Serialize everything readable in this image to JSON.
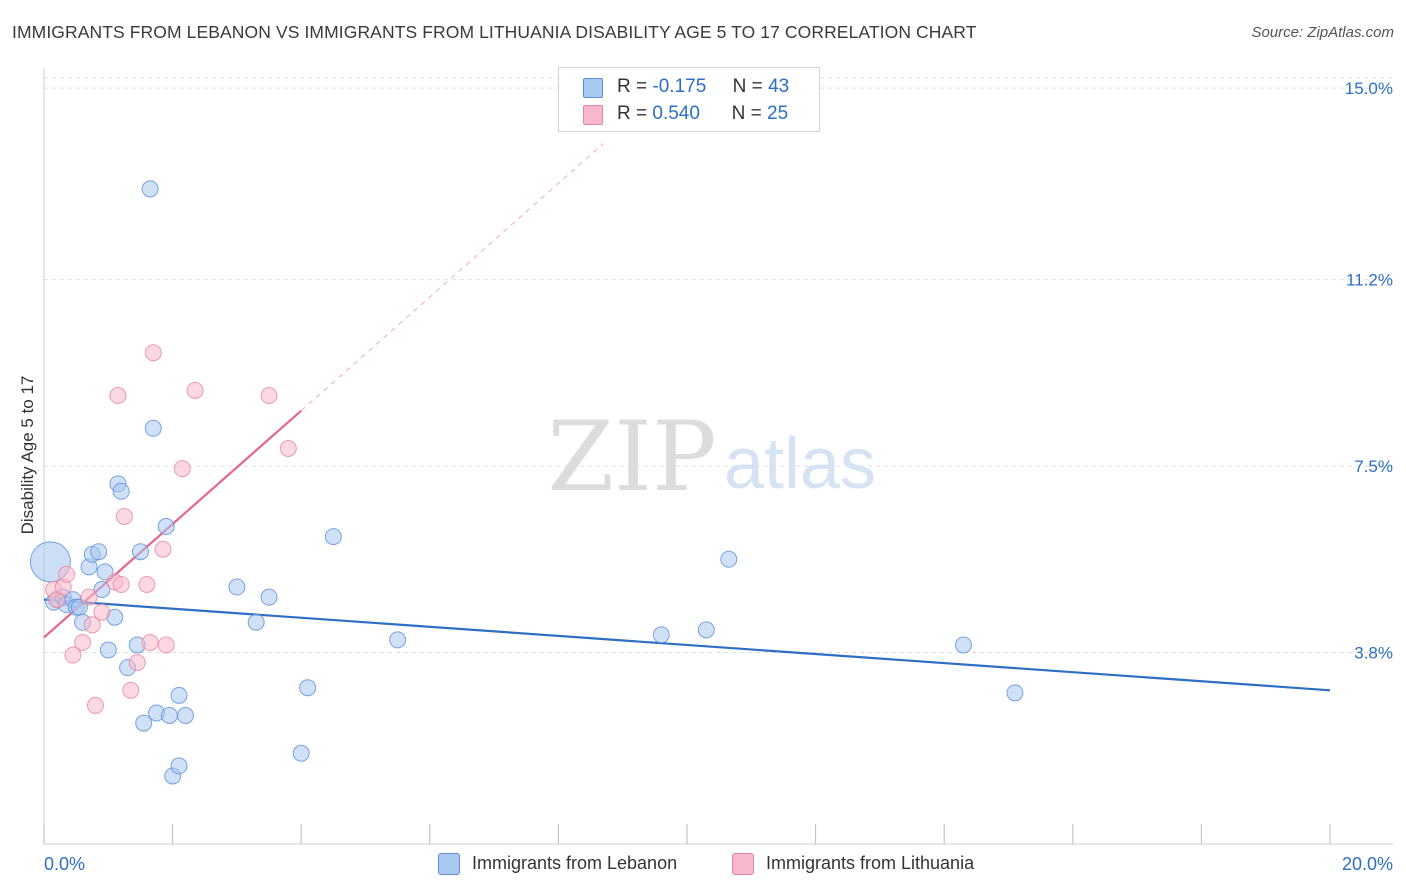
{
  "title": "IMMIGRANTS FROM LEBANON VS IMMIGRANTS FROM LITHUANIA DISABILITY AGE 5 TO 17 CORRELATION CHART",
  "source": "Source: ZipAtlas.com",
  "watermark": {
    "zip": "ZIP",
    "atlas": "atlas"
  },
  "legend_top": [
    {
      "r_label": "R =",
      "r_value": "-0.175",
      "n_label": "N =",
      "n_value": "43",
      "color": "#a9c8f0"
    },
    {
      "r_label": "R =",
      "r_value": "0.540",
      "n_label": "N =",
      "n_value": "25",
      "color": "#f7b8cb"
    }
  ],
  "chart_data": {
    "type": "scatter",
    "title": "IMMIGRANTS FROM LEBANON VS IMMIGRANTS FROM LITHUANIA DISABILITY AGE 5 TO 17 CORRELATION CHART",
    "xlabel": "",
    "ylabel": "Disability Age 5 to 17",
    "xlim": [
      0,
      20
    ],
    "ylim": [
      0,
      15.4
    ],
    "x_tick_labels": [
      "0.0%",
      "20.0%"
    ],
    "y_ticks": [
      3.8,
      7.5,
      11.2,
      15.0
    ],
    "y_tick_labels": [
      "3.8%",
      "7.5%",
      "11.2%",
      "15.0%"
    ],
    "grid": true,
    "legend_position": "bottom",
    "series": [
      {
        "name": "Immigrants from Lebanon",
        "color": "#a9c8f0",
        "stroke": "#5b8fd6",
        "trend": {
          "x": [
            0.0,
            20.0
          ],
          "y": [
            4.85,
            3.05
          ]
        },
        "points": [
          {
            "x": 0.1,
            "y": 5.6,
            "big": true
          },
          {
            "x": 0.15,
            "y": 4.8
          },
          {
            "x": 0.2,
            "y": 4.85
          },
          {
            "x": 0.3,
            "y": 4.9
          },
          {
            "x": 0.35,
            "y": 4.75
          },
          {
            "x": 0.45,
            "y": 4.85
          },
          {
            "x": 0.5,
            "y": 4.7
          },
          {
            "x": 0.6,
            "y": 4.4
          },
          {
            "x": 0.7,
            "y": 5.5
          },
          {
            "x": 0.75,
            "y": 5.75
          },
          {
            "x": 0.85,
            "y": 5.8
          },
          {
            "x": 0.9,
            "y": 5.05
          },
          {
            "x": 0.95,
            "y": 5.4
          },
          {
            "x": 1.0,
            "y": 3.85
          },
          {
            "x": 1.1,
            "y": 4.5
          },
          {
            "x": 1.15,
            "y": 7.15
          },
          {
            "x": 1.2,
            "y": 7.0
          },
          {
            "x": 1.3,
            "y": 3.5
          },
          {
            "x": 1.45,
            "y": 3.95
          },
          {
            "x": 1.5,
            "y": 5.8
          },
          {
            "x": 1.55,
            "y": 2.4
          },
          {
            "x": 1.65,
            "y": 13.0
          },
          {
            "x": 1.7,
            "y": 8.25
          },
          {
            "x": 1.75,
            "y": 2.6
          },
          {
            "x": 1.9,
            "y": 6.3
          },
          {
            "x": 1.95,
            "y": 2.55
          },
          {
            "x": 2.0,
            "y": 1.35
          },
          {
            "x": 2.1,
            "y": 1.55
          },
          {
            "x": 2.1,
            "y": 2.95
          },
          {
            "x": 2.2,
            "y": 2.55
          },
          {
            "x": 3.0,
            "y": 5.1
          },
          {
            "x": 3.3,
            "y": 4.4
          },
          {
            "x": 3.5,
            "y": 4.9
          },
          {
            "x": 4.0,
            "y": 1.8
          },
          {
            "x": 4.1,
            "y": 3.1
          },
          {
            "x": 4.5,
            "y": 6.1
          },
          {
            "x": 5.5,
            "y": 4.05
          },
          {
            "x": 9.6,
            "y": 4.15
          },
          {
            "x": 10.3,
            "y": 4.25
          },
          {
            "x": 10.65,
            "y": 5.65
          },
          {
            "x": 14.3,
            "y": 3.95
          },
          {
            "x": 15.1,
            "y": 3.0
          },
          {
            "x": 0.55,
            "y": 4.7
          }
        ]
      },
      {
        "name": "Immigrants from Lithuania",
        "color": "#f7b8cb",
        "stroke": "#e8869f",
        "trend": {
          "x": [
            0.0,
            4.0
          ],
          "y": [
            4.1,
            8.6
          ]
        },
        "trend_dashed": {
          "x": [
            4.0,
            8.7
          ],
          "y": [
            8.6,
            13.9
          ]
        },
        "points": [
          {
            "x": 0.15,
            "y": 5.05
          },
          {
            "x": 0.2,
            "y": 4.85
          },
          {
            "x": 0.3,
            "y": 5.1
          },
          {
            "x": 0.35,
            "y": 5.35
          },
          {
            "x": 0.45,
            "y": 3.75
          },
          {
            "x": 0.6,
            "y": 4.0
          },
          {
            "x": 0.7,
            "y": 4.9
          },
          {
            "x": 0.75,
            "y": 4.35
          },
          {
            "x": 0.8,
            "y": 2.75
          },
          {
            "x": 0.9,
            "y": 4.6
          },
          {
            "x": 1.1,
            "y": 5.2
          },
          {
            "x": 1.15,
            "y": 8.9
          },
          {
            "x": 1.25,
            "y": 6.5
          },
          {
            "x": 1.35,
            "y": 3.05
          },
          {
            "x": 1.45,
            "y": 3.6
          },
          {
            "x": 1.6,
            "y": 5.15
          },
          {
            "x": 1.65,
            "y": 4.0
          },
          {
            "x": 1.7,
            "y": 9.75
          },
          {
            "x": 1.85,
            "y": 5.85
          },
          {
            "x": 1.9,
            "y": 3.95
          },
          {
            "x": 2.15,
            "y": 7.45
          },
          {
            "x": 2.35,
            "y": 9.0
          },
          {
            "x": 3.5,
            "y": 8.9
          },
          {
            "x": 3.8,
            "y": 7.85
          },
          {
            "x": 1.2,
            "y": 5.15
          }
        ]
      }
    ]
  }
}
